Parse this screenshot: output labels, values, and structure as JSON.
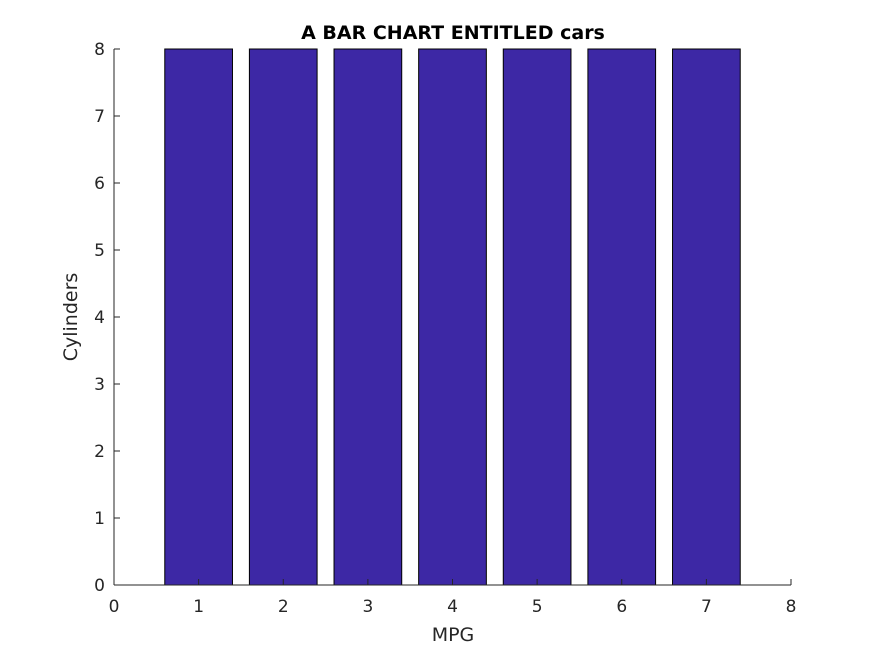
{
  "chart_data": {
    "type": "bar",
    "title": "A BAR CHART ENTITLED cars",
    "xlabel": "MPG",
    "ylabel": "Cylinders",
    "categories": [
      1,
      2,
      3,
      4,
      5,
      6,
      7
    ],
    "values": [
      8,
      8,
      8,
      8,
      8,
      8,
      8
    ],
    "xlim": [
      0,
      8
    ],
    "ylim": [
      0,
      8
    ],
    "xticks": [
      0,
      1,
      2,
      3,
      4,
      5,
      6,
      7,
      8
    ],
    "yticks": [
      0,
      1,
      2,
      3,
      4,
      5,
      6,
      7,
      8
    ],
    "grid": false,
    "legend": "none",
    "colors": {
      "bar_fill": "#3d28a5",
      "bar_edge": "#000000",
      "axis": "#262626"
    }
  }
}
